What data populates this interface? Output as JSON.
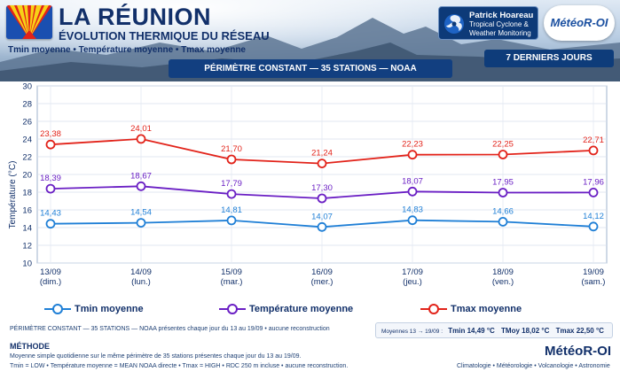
{
  "header": {
    "title": "LA RÉUNION",
    "subtitle": "ÉVOLUTION THERMIQUE DU RÉSEAU",
    "legend_line": "Tmin moyenne  •  Température moyenne  •  Tmax moyenne",
    "period_badge": "7 DERNIERS JOURS",
    "perimeter_bar": "PÉRIMÈTRE CONSTANT — 35 STATIONS — NOAA",
    "partner_name": "Patrick Hoareau",
    "partner_sub1": "Tropical Cyclone &",
    "partner_sub2": "Weather Monitoring",
    "brand": "MétéoR-OI"
  },
  "chart_data": {
    "type": "line",
    "categories": [
      "13/09",
      "14/09",
      "15/09",
      "16/09",
      "17/09",
      "18/09",
      "19/09"
    ],
    "category_days": [
      "(dim.)",
      "(lun.)",
      "(mar.)",
      "(mer.)",
      "(jeu.)",
      "(ven.)",
      "(sam.)"
    ],
    "ylabel": "Température (°C)",
    "ylim": [
      10,
      30
    ],
    "yticks": [
      10,
      12,
      14,
      16,
      18,
      20,
      22,
      24,
      26,
      28,
      30
    ],
    "grid": true,
    "series": [
      {
        "name": "Tmax moyenne",
        "color": "#e2231a",
        "values": [
          23.38,
          24.01,
          21.7,
          21.24,
          22.23,
          22.25,
          22.71
        ],
        "labels": [
          "23,38",
          "24,01",
          "21,70",
          "21,24",
          "22,23",
          "22,25",
          "22,71"
        ]
      },
      {
        "name": "Température moyenne",
        "color": "#6a1fc4",
        "values": [
          18.39,
          18.67,
          17.79,
          17.3,
          18.07,
          17.95,
          17.96
        ],
        "labels": [
          "18,39",
          "18,67",
          "17,79",
          "17,30",
          "18,07",
          "17,95",
          "17,96"
        ]
      },
      {
        "name": "Tmin moyenne",
        "color": "#1f7fd6",
        "values": [
          14.43,
          14.54,
          14.81,
          14.07,
          14.83,
          14.66,
          14.12
        ],
        "labels": [
          "14,43",
          "14,54",
          "14,81",
          "14,07",
          "14,83",
          "14,66",
          "14,12"
        ]
      }
    ]
  },
  "legend": {
    "tmin": "Tmin moyenne",
    "tmoy": "Température moyenne",
    "tmax": "Tmax moyenne"
  },
  "footer": {
    "note": "PÉRIMÈTRE CONSTANT — 35 STATIONS — NOAA présentes chaque jour du 13 au 19/09  •  aucune reconstruction",
    "means_period": "Moyennes 13 → 19/09 :",
    "mean_tmin": "Tmin 14,49 °C",
    "mean_tmoy": "TMoy 18,02 °C",
    "mean_tmax": "Tmax 22,50 °C",
    "method_title": "MÉTHODE",
    "method_1": "Moyenne simple quotidienne sur le même périmètre de 35 stations présentes chaque jour du 13 au 19/09.",
    "method_2": "Tmin = LOW  •  Température moyenne = MEAN NOAA directe  •  Tmax = HIGH  •  RDC 250 m incluse  •  aucune reconstruction.",
    "brand": "MétéoR-OI",
    "tagline": "Climatologie  •  Météorologie  •  Volcanologie  •  Astronomie"
  },
  "colors": {
    "navy": "#12306a",
    "tmin": "#1f7fd6",
    "tmoy": "#6a1fc4",
    "tmax": "#e2231a"
  }
}
